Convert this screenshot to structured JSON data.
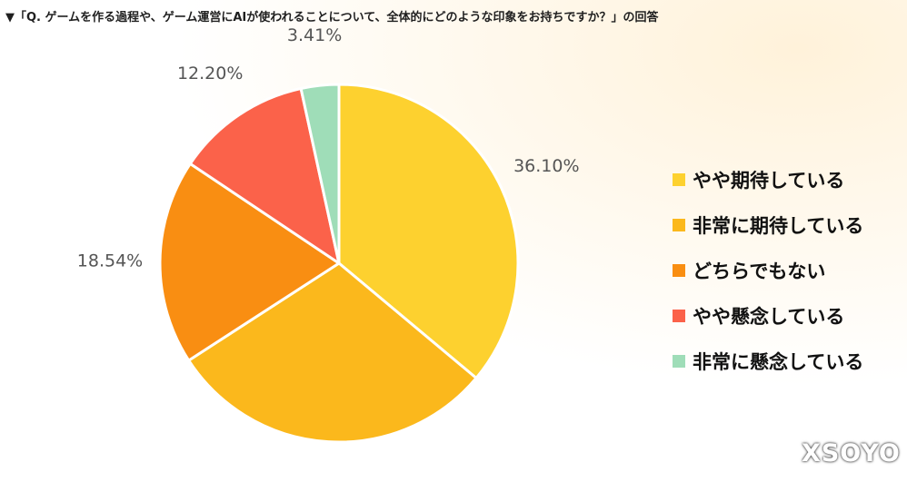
{
  "title": "▼「Q. ゲームを作る過程や、ゲーム運営にAIが使われることについて、全体的にどのような印象をお持ちですか？」の回答",
  "watermark": "XSOYO",
  "chart_data": {
    "type": "pie",
    "categories": [
      "やや期待している",
      "非常に期待している",
      "どちらでもない",
      "やや懸念している",
      "非常に懸念している"
    ],
    "values": [
      36.1,
      29.76,
      18.54,
      12.2,
      3.41
    ],
    "data_labels": [
      "36.10%",
      "29.76%",
      "18.54%",
      "12.20%",
      "3.41%"
    ],
    "colors": [
      "#fdd12f",
      "#fbb81c",
      "#f98e12",
      "#fb624a",
      "#9fddb8"
    ],
    "start_angle": "12 o'clock",
    "direction": "clockwise",
    "legend_position": "right"
  }
}
